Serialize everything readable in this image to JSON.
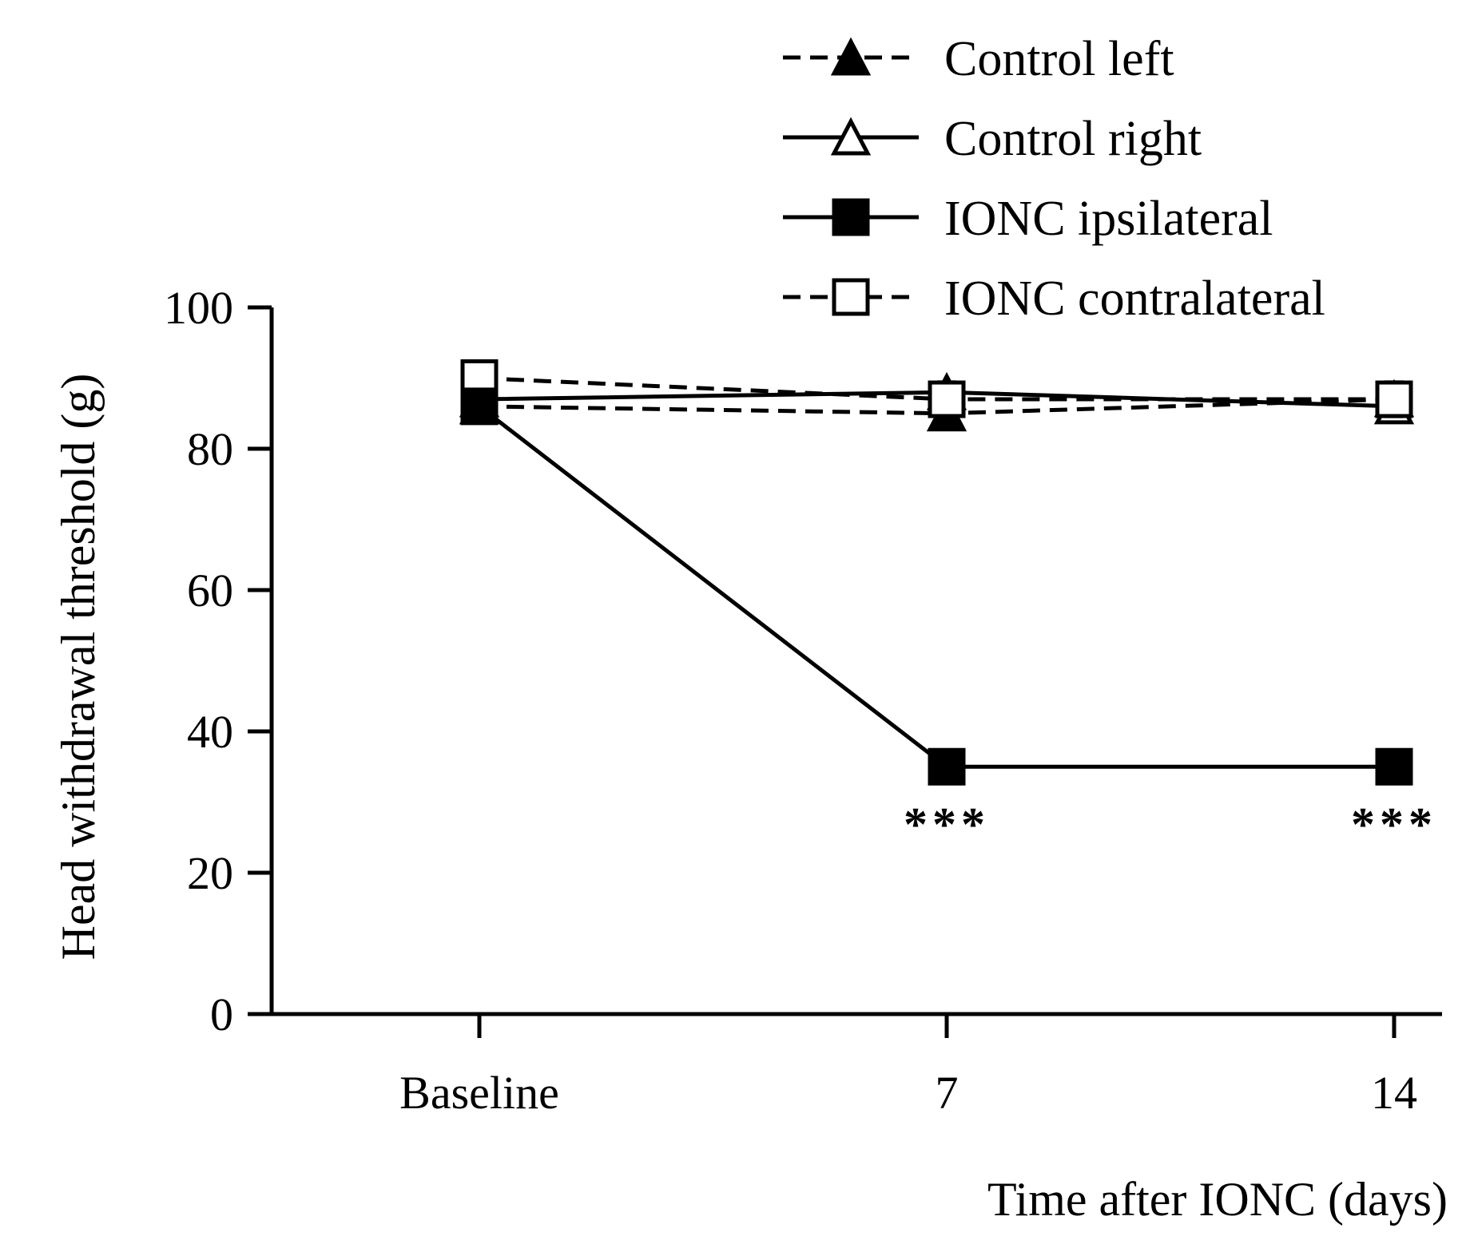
{
  "chart_data": {
    "type": "line",
    "title": "",
    "xlabel": "Time after IONC (days)",
    "ylabel": "Head withdrawal threshold (g)",
    "categories": [
      "Baseline",
      "7",
      "14"
    ],
    "ylim": [
      0,
      100
    ],
    "yticks": [
      "0",
      "20",
      "40",
      "60",
      "80",
      "100"
    ],
    "legend_position": "top-right",
    "series": [
      {
        "name": "Control left",
        "values": [
          86,
          85,
          87
        ],
        "errors": [
          1.5,
          2,
          1.5
        ],
        "line": "dashed",
        "marker": "triangle",
        "fill": "filled"
      },
      {
        "name": "Control right",
        "values": [
          87,
          88,
          86
        ],
        "errors": [
          1.5,
          1.5,
          1.5
        ],
        "line": "solid",
        "marker": "triangle",
        "fill": "open"
      },
      {
        "name": "IONC ipsilateral",
        "values": [
          86,
          35,
          35
        ],
        "errors": [
          1,
          1,
          1
        ],
        "line": "solid",
        "marker": "square",
        "fill": "filled"
      },
      {
        "name": "IONC contralateral",
        "values": [
          90,
          87,
          87
        ],
        "errors": [
          1.5,
          1.5,
          2.5
        ],
        "line": "dashed",
        "marker": "square",
        "fill": "open"
      }
    ],
    "annotations": [
      {
        "category_index": 1,
        "text": "***",
        "series": "IONC ipsilateral"
      },
      {
        "category_index": 2,
        "text": "***",
        "series": "IONC ipsilateral"
      }
    ]
  }
}
